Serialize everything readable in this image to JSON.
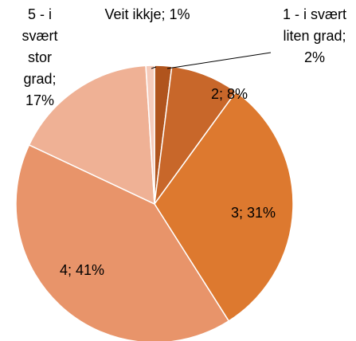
{
  "chart_data": {
    "type": "pie",
    "values": [
      2,
      8,
      31,
      41,
      17,
      1
    ],
    "value_labels": [
      "1 - i svært liten grad; 2%",
      "2; 8%",
      "3; 31%",
      "4; 41%",
      "5 - i svært stor grad; 17%",
      "Veit ikkje; 1%"
    ],
    "colors": [
      "#b0541d",
      "#c8672a",
      "#dd792f",
      "#e8946a",
      "#efb195",
      "#f5cbbb"
    ]
  }
}
